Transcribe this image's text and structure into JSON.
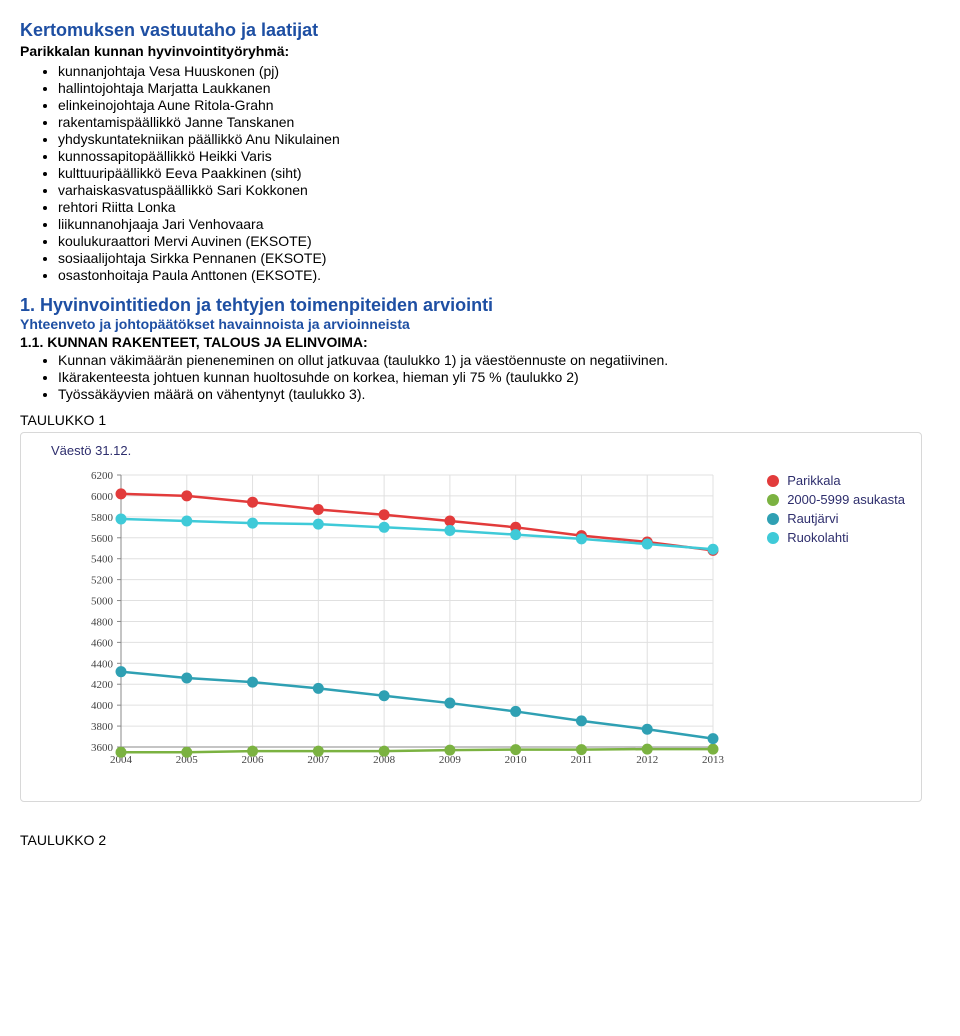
{
  "title1": "Kertomuksen vastuutaho ja laatijat",
  "subline": "Parikkalan kunnan hyvinvointityöryhmä:",
  "members": [
    "kunnanjohtaja Vesa Huuskonen (pj)",
    "hallintojohtaja Marjatta Laukkanen",
    "elinkeinojohtaja Aune Ritola-Grahn",
    "rakentamispäällikkö Janne Tanskanen",
    "yhdyskuntatekniikan päällikkö Anu Nikulainen",
    "kunnossapitopäällikkö Heikki Varis",
    "kulttuuripäällikkö Eeva Paakkinen (siht)",
    "varhaiskasvatuspäällikkö Sari Kokkonen",
    "rehtori Riitta Lonka",
    "liikunnanohjaaja Jari Venhovaara",
    "koulukuraattori Mervi Auvinen (EKSOTE)",
    "sosiaalijohtaja Sirkka Pennanen (EKSOTE)",
    "osastonhoitaja Paula Anttonen (EKSOTE)."
  ],
  "section1_num_title": "1. Hyvinvointitiedon ja tehtyjen toimenpiteiden arviointi",
  "section1_sub": "Yhteenveto ja johtopäätökset havainnoista ja arvioinneista",
  "section11": "1.1. KUNNAN RAKENTEET, TALOUS JA ELINVOIMA:",
  "section1_bullets": [
    "Kunnan väkimäärän pieneneminen on ollut jatkuvaa (taulukko 1) ja väestöennuste on negatiivinen.",
    "Ikärakenteesta johtuen kunnan huoltosuhde on korkea, hieman yli 75 % (taulukko 2)",
    "Työssäkäyvien määrä on vähentynyt (taulukko 3)."
  ],
  "tlabel1": "TAULUKKO 1",
  "tlabel2": "TAULUKKO 2",
  "chart": {
    "type": "line",
    "title": "Väestö 31.12.",
    "categories": [
      "2004",
      "2005",
      "2006",
      "2007",
      "2008",
      "2009",
      "2010",
      "2011",
      "2012",
      "2013"
    ],
    "ylim": [
      3600,
      6200
    ],
    "ytick_step": 200,
    "background_color": "#ffffff",
    "grid_color": "#e0e0e0",
    "axis_color": "#888888",
    "title_color": "#2e2e6d",
    "label_fontsize": 11,
    "line_width": 2.5,
    "dot_radius": 5.5,
    "series": [
      {
        "name": "Parikkala",
        "color": "#e23b3b",
        "values": [
          6020,
          6000,
          5940,
          5870,
          5820,
          5760,
          5700,
          5620,
          5560,
          5480
        ]
      },
      {
        "name": "2000-5999 asukasta",
        "color": "#7bb241",
        "values": [
          3550,
          3550,
          3560,
          3560,
          3560,
          3570,
          3575,
          3575,
          3580,
          3580
        ]
      },
      {
        "name": "Rautjärvi",
        "color": "#2fa0b3",
        "values": [
          4320,
          4260,
          4220,
          4160,
          4090,
          4020,
          3940,
          3850,
          3770,
          3680
        ]
      },
      {
        "name": "Ruokolahti",
        "color": "#3fcad8",
        "values": [
          5780,
          5760,
          5740,
          5730,
          5700,
          5670,
          5630,
          5590,
          5540,
          5490
        ]
      }
    ],
    "legend": [
      {
        "label": "Parikkala",
        "color": "#e23b3b"
      },
      {
        "label": "2000-5999 asukasta",
        "color": "#7bb241"
      },
      {
        "label": "Rautjärvi",
        "color": "#2fa0b3"
      },
      {
        "label": "Ruokolahti",
        "color": "#3fcad8"
      }
    ]
  }
}
